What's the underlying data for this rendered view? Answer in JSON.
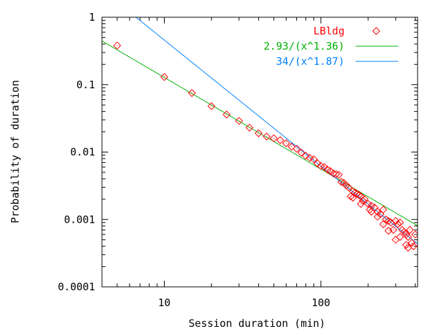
{
  "chart_data": {
    "type": "scatter",
    "title": "",
    "xlabel": "Session duration (min)",
    "ylabel": "Probability of duration",
    "xscale": "log",
    "yscale": "log",
    "xlim": [
      4,
      414
    ],
    "ylim": [
      0.0001,
      1
    ],
    "xticks": [
      {
        "value": 10,
        "label": "10"
      },
      {
        "value": 100,
        "label": "100"
      }
    ],
    "yticks": [
      {
        "value": 1,
        "label": "1"
      },
      {
        "value": 0.1,
        "label": "0.1"
      },
      {
        "value": 0.01,
        "label": "0.01"
      },
      {
        "value": 0.001,
        "label": "0.001"
      },
      {
        "value": 0.0001,
        "label": "0.0001"
      }
    ],
    "grid": false,
    "legend_position": "top-right",
    "series": [
      {
        "name": "LBldg",
        "kind": "points",
        "color": "#ff0000",
        "points": [
          [
            5,
            0.38
          ],
          [
            10,
            0.13
          ],
          [
            15,
            0.075
          ],
          [
            20,
            0.048
          ],
          [
            25,
            0.036
          ],
          [
            30,
            0.029
          ],
          [
            35,
            0.023
          ],
          [
            40,
            0.019
          ],
          [
            45,
            0.017
          ],
          [
            50,
            0.016
          ],
          [
            55,
            0.015
          ],
          [
            60,
            0.0135
          ],
          [
            65,
            0.012
          ],
          [
            70,
            0.0112
          ],
          [
            75,
            0.0098
          ],
          [
            80,
            0.0088
          ],
          [
            85,
            0.0082
          ],
          [
            90,
            0.0078
          ],
          [
            95,
            0.0068
          ],
          [
            100,
            0.0062
          ],
          [
            105,
            0.006
          ],
          [
            110,
            0.0055
          ],
          [
            115,
            0.0052
          ],
          [
            120,
            0.0048
          ],
          [
            125,
            0.0047
          ],
          [
            130,
            0.0046
          ],
          [
            135,
            0.0036
          ],
          [
            140,
            0.0035
          ],
          [
            145,
            0.0032
          ],
          [
            150,
            0.003
          ],
          [
            155,
            0.0022
          ],
          [
            160,
            0.0026
          ],
          [
            165,
            0.0025
          ],
          [
            170,
            0.0024
          ],
          [
            175,
            0.0023
          ],
          [
            180,
            0.0022
          ],
          [
            185,
            0.0019
          ],
          [
            190,
            0.002
          ],
          [
            200,
            0.0017
          ],
          [
            205,
            0.0014
          ],
          [
            210,
            0.0016
          ],
          [
            220,
            0.0015
          ],
          [
            230,
            0.0013
          ],
          [
            240,
            0.0012
          ],
          [
            250,
            0.0014
          ],
          [
            260,
            0.001
          ],
          [
            270,
            0.00095
          ],
          [
            280,
            0.0009
          ],
          [
            290,
            0.0007
          ],
          [
            300,
            0.00095
          ],
          [
            310,
            0.00085
          ],
          [
            320,
            0.0009
          ],
          [
            330,
            0.0007
          ],
          [
            340,
            0.00065
          ],
          [
            350,
            0.0006
          ],
          [
            360,
            0.00055
          ],
          [
            370,
            0.0007
          ],
          [
            380,
            0.00045
          ],
          [
            390,
            0.0004
          ],
          [
            400,
            0.0006
          ],
          [
            300,
            0.0005
          ],
          [
            320,
            0.00055
          ],
          [
            350,
            0.00042
          ],
          [
            360,
            0.00038
          ],
          [
            270,
            0.00068
          ],
          [
            250,
            0.00085
          ],
          [
            230,
            0.0011
          ],
          [
            210,
            0.0013
          ],
          [
            180,
            0.0017
          ],
          [
            160,
            0.0021
          ]
        ]
      },
      {
        "name": "2.93/(x^1.36)",
        "kind": "line",
        "color": "#00b000",
        "a": 2.93,
        "b": 1.36
      },
      {
        "name": "34/(x^1.87)",
        "kind": "line",
        "color": "#0080ff",
        "a": 34,
        "b": 1.87
      }
    ]
  }
}
